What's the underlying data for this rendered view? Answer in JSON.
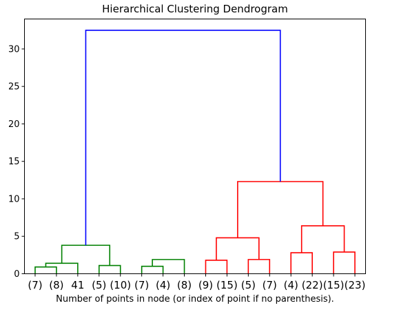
{
  "chart_data": {
    "type": "dendrogram",
    "title": "Hierarchical Clustering Dendrogram",
    "xlabel": "Number of points in node (or index of point if no parenthesis).",
    "ylabel": "",
    "ylim": [
      0,
      34
    ],
    "yticks": [
      "0",
      "5",
      "10",
      "15",
      "20",
      "25",
      "30"
    ],
    "leaf_labels": [
      "(7)",
      "(8)",
      "41",
      "(5)",
      "(10)",
      "(7)",
      "(4)",
      "(8)",
      "(9)",
      "(15)",
      "(5)",
      "(7)",
      "(4)",
      "(22)",
      "(15)",
      "(23)"
    ],
    "link_colors": {
      "cluster_a": "#008000",
      "cluster_b": "#ff0000",
      "above_threshold": "#0000ff"
    },
    "merges": [
      {
        "a": "L0",
        "b": "L1",
        "height": 0.9,
        "color": "cluster_a"
      },
      {
        "a": "N0",
        "b": "L2",
        "height": 1.4,
        "color": "cluster_a"
      },
      {
        "a": "L3",
        "b": "L4",
        "height": 1.1,
        "color": "cluster_a"
      },
      {
        "a": "L5",
        "b": "L6",
        "height": 1.0,
        "color": "cluster_a"
      },
      {
        "a": "N3",
        "b": "L7",
        "height": 1.9,
        "color": "cluster_a"
      },
      {
        "a": "N1",
        "b": "N2",
        "height": 3.8,
        "color": "cluster_a"
      },
      {
        "a": "L8",
        "b": "L9",
        "height": 1.8,
        "color": "cluster_b"
      },
      {
        "a": "L10",
        "b": "L11",
        "height": 1.9,
        "color": "cluster_b"
      },
      {
        "a": "N6",
        "b": "N7",
        "height": 4.8,
        "color": "cluster_b"
      },
      {
        "a": "L12",
        "b": "L13",
        "height": 2.8,
        "color": "cluster_b"
      },
      {
        "a": "L14",
        "b": "L15",
        "height": 2.9,
        "color": "cluster_b"
      },
      {
        "a": "N9",
        "b": "N10",
        "height": 6.4,
        "color": "cluster_b"
      },
      {
        "a": "N8",
        "b": "N11",
        "height": 12.3,
        "color": "cluster_b"
      },
      {
        "a": "N5",
        "b": "N12",
        "height": 32.5,
        "color": "above_threshold"
      }
    ]
  }
}
